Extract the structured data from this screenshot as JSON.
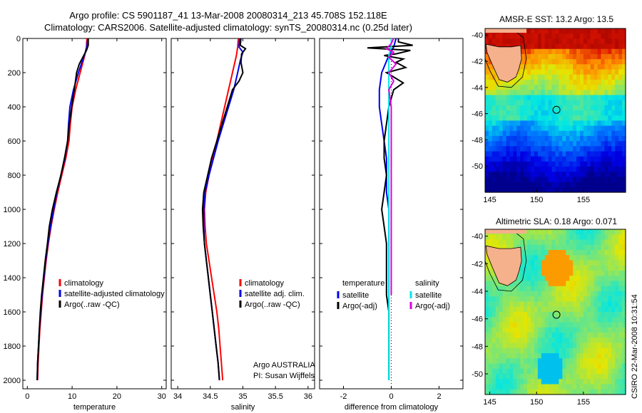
{
  "header": {
    "title_line1": "Argo profile: CS 5901187_41 13-Mar-2008 20080314_213 45.708S 152.118E",
    "title_line2": "Climatology: CARS2006. Satellite-adjusted climatology: synTS_20080314.nc (0.25d later)"
  },
  "signature": "CSIRO 22-Mar-2008 10:31:54",
  "colors": {
    "red": "#ff0000",
    "blue": "#0000ee",
    "black": "#000000",
    "cyan": "#00e8e8",
    "magenta": "#dd00dd"
  },
  "chart_data": [
    {
      "type": "line",
      "name_key": "temperature",
      "xlabel": "temperature",
      "xlim": [
        -1,
        31
      ],
      "ylim": [
        0,
        2050
      ],
      "xticks": [
        "0",
        "10",
        "20",
        "30"
      ],
      "yticks": [
        "0",
        "200",
        "400",
        "600",
        "800",
        "1000",
        "1200",
        "1400",
        "1600",
        "1800",
        "2000"
      ],
      "legend": {
        "placement": "lower-right",
        "entries": [
          "climatology",
          "satellite-adjusted climatology",
          "Argo(..raw -QC)"
        ]
      },
      "series": [
        {
          "color": "red",
          "points": [
            [
              13.3,
              0
            ],
            [
              13.2,
              50
            ],
            [
              12.8,
              100
            ],
            [
              11.8,
              200
            ],
            [
              10.8,
              300
            ],
            [
              10.0,
              400
            ],
            [
              9.6,
              500
            ],
            [
              9.3,
              600
            ],
            [
              8.6,
              700
            ],
            [
              7.7,
              800
            ],
            [
              6.8,
              900
            ],
            [
              6.0,
              1000
            ],
            [
              5.3,
              1100
            ],
            [
              4.7,
              1200
            ],
            [
              4.2,
              1300
            ],
            [
              3.8,
              1400
            ],
            [
              3.4,
              1500
            ],
            [
              3.1,
              1600
            ],
            [
              2.8,
              1700
            ],
            [
              2.6,
              1800
            ],
            [
              2.4,
              1900
            ],
            [
              2.3,
              2000
            ]
          ]
        },
        {
          "color": "blue",
          "points": [
            [
              13.5,
              0
            ],
            [
              13.3,
              50
            ],
            [
              12.7,
              100
            ],
            [
              11.4,
              200
            ],
            [
              10.3,
              300
            ],
            [
              9.5,
              400
            ],
            [
              9.2,
              500
            ],
            [
              9.0,
              600
            ],
            [
              8.4,
              700
            ],
            [
              7.5,
              800
            ],
            [
              6.6,
              900
            ],
            [
              5.9,
              1000
            ],
            [
              5.2,
              1100
            ],
            [
              4.6,
              1200
            ],
            [
              4.1,
              1300
            ],
            [
              3.7,
              1400
            ],
            [
              3.3,
              1500
            ],
            [
              3.0,
              1600
            ],
            [
              2.7,
              1700
            ],
            [
              2.5,
              1800
            ],
            [
              2.3,
              1900
            ],
            [
              2.2,
              2000
            ]
          ]
        },
        {
          "color": "black",
          "points": [
            [
              13.6,
              0
            ],
            [
              13.6,
              40
            ],
            [
              13.2,
              70
            ],
            [
              12.6,
              100
            ],
            [
              11.6,
              150
            ],
            [
              11.0,
              200
            ],
            [
              10.5,
              300
            ],
            [
              9.9,
              400
            ],
            [
              9.4,
              500
            ],
            [
              9.0,
              600
            ],
            [
              8.3,
              700
            ],
            [
              7.5,
              800
            ],
            [
              6.5,
              900
            ],
            [
              5.6,
              1000
            ],
            [
              4.9,
              1100
            ],
            [
              4.5,
              1200
            ],
            [
              4.0,
              1300
            ],
            [
              3.6,
              1400
            ],
            [
              3.2,
              1500
            ],
            [
              2.9,
              1600
            ],
            [
              2.7,
              1700
            ],
            [
              2.5,
              1800
            ],
            [
              2.3,
              1900
            ],
            [
              2.2,
              2000
            ]
          ]
        }
      ]
    },
    {
      "type": "line",
      "name_key": "salinity",
      "xlabel": "salinity",
      "xlim": [
        33.9,
        36.1
      ],
      "ylim": [
        0,
        2050
      ],
      "xticks": [
        "34",
        "34.5",
        "35",
        "35.5",
        "36"
      ],
      "yticks": [],
      "legend": {
        "placement": "lower-right",
        "entries": [
          "climatology",
          "satellite adj. clim.",
          "Argo(..raw -QC)"
        ]
      },
      "annotation": {
        "line1": "Argo AUSTRALIA",
        "line2": "PI: Susan Wijffels"
      },
      "series": [
        {
          "color": "red",
          "points": [
            [
              34.93,
              0
            ],
            [
              34.92,
              50
            ],
            [
              34.9,
              100
            ],
            [
              34.84,
              200
            ],
            [
              34.78,
              300
            ],
            [
              34.72,
              400
            ],
            [
              34.66,
              500
            ],
            [
              34.6,
              600
            ],
            [
              34.54,
              700
            ],
            [
              34.48,
              800
            ],
            [
              34.43,
              900
            ],
            [
              34.41,
              1000
            ],
            [
              34.42,
              1100
            ],
            [
              34.44,
              1200
            ],
            [
              34.48,
              1300
            ],
            [
              34.52,
              1400
            ],
            [
              34.56,
              1500
            ],
            [
              34.6,
              1600
            ],
            [
              34.63,
              1700
            ],
            [
              34.65,
              1800
            ],
            [
              34.67,
              1900
            ],
            [
              34.69,
              2000
            ]
          ]
        },
        {
          "color": "blue",
          "points": [
            [
              34.95,
              0
            ],
            [
              34.94,
              50
            ],
            [
              35.0,
              80
            ],
            [
              34.96,
              130
            ],
            [
              34.92,
              200
            ],
            [
              34.86,
              300
            ],
            [
              34.78,
              400
            ],
            [
              34.7,
              500
            ],
            [
              34.62,
              600
            ],
            [
              34.55,
              700
            ],
            [
              34.48,
              800
            ],
            [
              34.42,
              900
            ],
            [
              34.4,
              1000
            ],
            [
              34.4,
              1100
            ],
            [
              34.41,
              1200
            ],
            [
              34.44,
              1300
            ],
            [
              34.47,
              1400
            ],
            [
              34.5,
              1500
            ],
            [
              34.53,
              1600
            ],
            [
              34.56,
              1700
            ],
            [
              34.59,
              1800
            ],
            [
              34.62,
              1900
            ],
            [
              34.64,
              2000
            ]
          ]
        },
        {
          "color": "black",
          "points": [
            [
              34.97,
              0
            ],
            [
              34.96,
              40
            ],
            [
              35.04,
              60
            ],
            [
              34.98,
              90
            ],
            [
              34.97,
              140
            ],
            [
              35.0,
              200
            ],
            [
              34.94,
              250
            ],
            [
              34.84,
              300
            ],
            [
              34.76,
              400
            ],
            [
              34.68,
              500
            ],
            [
              34.6,
              600
            ],
            [
              34.52,
              700
            ],
            [
              34.46,
              800
            ],
            [
              34.4,
              900
            ],
            [
              34.38,
              1000
            ],
            [
              34.39,
              1100
            ],
            [
              34.41,
              1200
            ],
            [
              34.44,
              1300
            ],
            [
              34.47,
              1400
            ],
            [
              34.5,
              1500
            ],
            [
              34.53,
              1600
            ],
            [
              34.56,
              1700
            ],
            [
              34.59,
              1800
            ],
            [
              34.62,
              1900
            ],
            [
              34.64,
              2000
            ]
          ]
        }
      ]
    },
    {
      "type": "line",
      "name_key": "difference",
      "xlabel": "difference from climatology",
      "xlim": [
        -3,
        3
      ],
      "ylim": [
        0,
        2050
      ],
      "xticks": [
        "-2",
        "0",
        "2"
      ],
      "yticks": [],
      "legend": {
        "placement": "lower-center",
        "header_left": "temperature",
        "header_right": "salinity",
        "left_entries": [
          "satellite",
          "Argo(-adj)"
        ],
        "right_entries": [
          "satellite",
          "Argo(-adj)"
        ]
      },
      "series": [
        {
          "color": "blue",
          "points": [
            [
              0.2,
              0
            ],
            [
              0.1,
              50
            ],
            [
              -0.1,
              100
            ],
            [
              -0.4,
              200
            ],
            [
              -0.5,
              300
            ],
            [
              -0.5,
              400
            ],
            [
              -0.4,
              500
            ],
            [
              -0.3,
              600
            ],
            [
              -0.2,
              700
            ],
            [
              -0.2,
              800
            ],
            [
              -0.2,
              900
            ],
            [
              -0.1,
              1000
            ],
            [
              -0.1,
              1100
            ],
            [
              -0.1,
              1200
            ],
            [
              -0.1,
              1300
            ],
            [
              -0.1,
              1400
            ],
            [
              -0.1,
              1500
            ],
            [
              -0.1,
              1600
            ],
            [
              -0.1,
              1700
            ],
            [
              -0.1,
              1800
            ],
            [
              -0.1,
              1900
            ],
            [
              -0.1,
              2000
            ]
          ]
        },
        {
          "color": "black",
          "points": [
            [
              0.3,
              0
            ],
            [
              0.3,
              20
            ],
            [
              0.9,
              40
            ],
            [
              -1.0,
              55
            ],
            [
              0.8,
              70
            ],
            [
              0.2,
              90
            ],
            [
              -0.3,
              100
            ],
            [
              0.5,
              120
            ],
            [
              0.2,
              140
            ],
            [
              0.6,
              170
            ],
            [
              -0.2,
              200
            ],
            [
              0.5,
              260
            ],
            [
              0.1,
              300
            ],
            [
              -0.1,
              400
            ],
            [
              -0.2,
              500
            ],
            [
              -0.3,
              600
            ],
            [
              -0.3,
              700
            ],
            [
              -0.2,
              800
            ],
            [
              -0.3,
              900
            ],
            [
              -0.4,
              1000
            ],
            [
              -0.3,
              1100
            ],
            [
              -0.2,
              1200
            ],
            [
              -0.2,
              1300
            ],
            [
              -0.2,
              1400
            ],
            [
              -0.2,
              1500
            ],
            [
              -0.1,
              1600
            ],
            [
              -0.1,
              1700
            ],
            [
              -0.1,
              1800
            ],
            [
              -0.1,
              1900
            ],
            [
              -0.1,
              2000
            ]
          ]
        },
        {
          "color": "cyan",
          "points": [
            [
              0.0,
              0
            ],
            [
              0.0,
              50
            ],
            [
              -0.1,
              100
            ],
            [
              -0.1,
              200
            ],
            [
              -0.1,
              300
            ],
            [
              -0.1,
              400
            ],
            [
              -0.1,
              500
            ],
            [
              -0.1,
              600
            ],
            [
              -0.1,
              700
            ],
            [
              -0.1,
              800
            ],
            [
              -0.1,
              900
            ],
            [
              -0.1,
              1000
            ],
            [
              -0.1,
              1100
            ],
            [
              -0.1,
              1200
            ],
            [
              -0.1,
              1300
            ],
            [
              -0.1,
              1400
            ],
            [
              -0.1,
              1500
            ],
            [
              -0.1,
              1600
            ],
            [
              -0.1,
              1700
            ],
            [
              -0.1,
              1800
            ],
            [
              -0.1,
              1900
            ],
            [
              -0.1,
              2000
            ]
          ]
        },
        {
          "color": "magenta",
          "points": [
            [
              0.1,
              0
            ],
            [
              0.0,
              30
            ],
            [
              -0.2,
              60
            ],
            [
              0.1,
              80
            ],
            [
              -0.1,
              110
            ],
            [
              0.2,
              150
            ],
            [
              -0.1,
              200
            ],
            [
              0.1,
              250
            ],
            [
              -0.1,
              300
            ],
            [
              0.0,
              400
            ],
            [
              0.0,
              500
            ],
            [
              0.0,
              600
            ],
            [
              0.0,
              700
            ],
            [
              0.0,
              800
            ],
            [
              0.0,
              900
            ],
            [
              0.0,
              1000
            ],
            [
              0.0,
              1100
            ],
            [
              0.0,
              1200
            ],
            [
              0.0,
              1300
            ],
            [
              0.0,
              1400
            ],
            [
              0.0,
              1500
            ]
          ]
        }
      ]
    },
    {
      "type": "heatmap",
      "name_key": "sst",
      "title": "AMSR-E SST: 13.2 Argo: 13.5",
      "xlim": [
        144.5,
        159.5
      ],
      "ylim": [
        -52,
        -39.5
      ],
      "xticks": [
        "145",
        "150",
        "155"
      ],
      "yticks": [
        "-40",
        "-42",
        "-44",
        "-46",
        "-48",
        "-50"
      ],
      "marker": [
        152.118,
        -45.708
      ]
    },
    {
      "type": "heatmap",
      "name_key": "sla",
      "title": "Altimetric SLA: 0.18 Argo: 0.071",
      "xlim": [
        144.5,
        159.5
      ],
      "ylim": [
        -51.5,
        -39.5
      ],
      "xticks": [
        "145",
        "150",
        "155"
      ],
      "yticks": [
        "-40",
        "-42",
        "-44",
        "-46",
        "-48",
        "-50"
      ],
      "marker": [
        152.118,
        -45.708
      ]
    }
  ]
}
